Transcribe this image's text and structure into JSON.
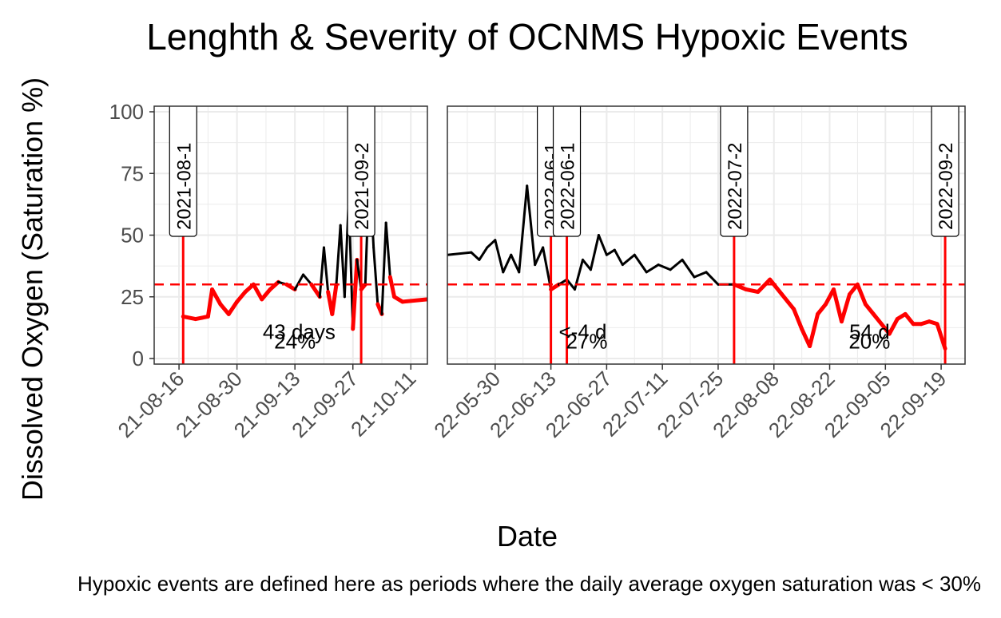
{
  "chart_data": {
    "type": "line",
    "title": "Lenghth & Severity of OCNMS Hypoxic Events",
    "xlabel": "Date",
    "ylabel": "Dissolved Oxygen (Saturation %)",
    "caption": "Hypoxic events are defined here as periods where the daily average oxygen saturation was < 30%",
    "ylim": [
      0,
      100
    ],
    "yticks": [
      0,
      25,
      50,
      75,
      100
    ],
    "threshold": 30,
    "colors": {
      "normal": "#000000",
      "hypoxic": "#ff0000",
      "grid": "#ebebeb",
      "frame": "#333333"
    },
    "panels": [
      {
        "xlim": [
          "2021-08-10",
          "2021-10-15"
        ],
        "xticks": [
          "21-08-16",
          "21-08-30",
          "21-09-13",
          "21-09-27",
          "21-10-11"
        ],
        "xtick_dates": [
          "2021-08-16",
          "2021-08-30",
          "2021-09-13",
          "2021-09-27",
          "2021-10-11"
        ],
        "event_lines": [
          {
            "date": "2021-08-17",
            "label": "2021-08-1"
          },
          {
            "date": "2021-09-29",
            "label": "2021-09-2"
          }
        ],
        "annotations": [
          {
            "x": "2021-09-14",
            "y": 8,
            "text": "43 days"
          },
          {
            "x": "2021-09-13",
            "y": 4,
            "text": "24%"
          }
        ],
        "series": [
          {
            "x": [
              "2021-08-17",
              "2021-08-20",
              "2021-08-23",
              "2021-08-24",
              "2021-08-26",
              "2021-08-28",
              "2021-08-30",
              "2021-09-01",
              "2021-09-03",
              "2021-09-05",
              "2021-09-07",
              "2021-09-09",
              "2021-09-11",
              "2021-09-13",
              "2021-09-15",
              "2021-09-17",
              "2021-09-19",
              "2021-09-20",
              "2021-09-21",
              "2021-09-22",
              "2021-09-23",
              "2021-09-24",
              "2021-09-25",
              "2021-09-26",
              "2021-09-27",
              "2021-09-28",
              "2021-09-29",
              "2021-09-30",
              "2021-10-01",
              "2021-10-02",
              "2021-10-03",
              "2021-10-04",
              "2021-10-05",
              "2021-10-06",
              "2021-10-07",
              "2021-10-09",
              "2021-10-15"
            ],
            "y": [
              17,
              16,
              17,
              28,
              22,
              18,
              23,
              27,
              30,
              24,
              28,
              31,
              30,
              28,
              34,
              30,
              25,
              45,
              27,
              18,
              30,
              54,
              25,
              65,
              12,
              40,
              28,
              30,
              78,
              45,
              22,
              18,
              55,
              33,
              25,
              23,
              24
            ]
          }
        ]
      },
      {
        "xlim": [
          "2022-05-18",
          "2022-09-25"
        ],
        "xticks": [
          "22-05-30",
          "22-06-13",
          "22-06-27",
          "22-07-11",
          "22-07-25",
          "22-08-08",
          "22-08-22",
          "22-09-05",
          "22-09-19"
        ],
        "xtick_dates": [
          "2022-05-30",
          "2022-06-13",
          "2022-06-27",
          "2022-07-11",
          "2022-07-25",
          "2022-08-08",
          "2022-08-22",
          "2022-09-05",
          "2022-09-19"
        ],
        "event_lines": [
          {
            "date": "2022-06-13",
            "label": "2022-06-1"
          },
          {
            "date": "2022-06-17",
            "label": "2022-06-1"
          },
          {
            "date": "2022-07-29",
            "label": "2022-07-2"
          },
          {
            "date": "2022-09-20",
            "label": "2022-09-2"
          }
        ],
        "annotations": [
          {
            "x": "2022-06-21",
            "y": 8,
            "text": "<-4 d"
          },
          {
            "x": "2022-06-22",
            "y": 4,
            "text": "27%"
          },
          {
            "x": "2022-09-01",
            "y": 8,
            "text": "54 d"
          },
          {
            "x": "2022-09-01",
            "y": 4,
            "text": "20%"
          }
        ],
        "series": [
          {
            "x": [
              "2022-05-18",
              "2022-05-24",
              "2022-05-26",
              "2022-05-28",
              "2022-05-30",
              "2022-06-01",
              "2022-06-03",
              "2022-06-05",
              "2022-06-07",
              "2022-06-09",
              "2022-06-11",
              "2022-06-13",
              "2022-06-15",
              "2022-06-17",
              "2022-06-19",
              "2022-06-21",
              "2022-06-23",
              "2022-06-25",
              "2022-06-27",
              "2022-06-29",
              "2022-07-01",
              "2022-07-04",
              "2022-07-07",
              "2022-07-10",
              "2022-07-13",
              "2022-07-16",
              "2022-07-19",
              "2022-07-22",
              "2022-07-25",
              "2022-07-29",
              "2022-08-01",
              "2022-08-04",
              "2022-08-07",
              "2022-08-10",
              "2022-08-13",
              "2022-08-15",
              "2022-08-17",
              "2022-08-19",
              "2022-08-21",
              "2022-08-23",
              "2022-08-25",
              "2022-08-27",
              "2022-08-29",
              "2022-08-31",
              "2022-09-02",
              "2022-09-04",
              "2022-09-06",
              "2022-09-08",
              "2022-09-10",
              "2022-09-12",
              "2022-09-14",
              "2022-09-16",
              "2022-09-18",
              "2022-09-20"
            ],
            "y": [
              42,
              43,
              40,
              45,
              48,
              35,
              42,
              35,
              70,
              38,
              45,
              28,
              30,
              32,
              28,
              40,
              36,
              50,
              42,
              44,
              38,
              42,
              35,
              38,
              36,
              40,
              33,
              35,
              30,
              30,
              28,
              27,
              32,
              26,
              20,
              12,
              5,
              18,
              22,
              28,
              15,
              26,
              30,
              22,
              18,
              14,
              10,
              16,
              18,
              14,
              14,
              15,
              14,
              4
            ]
          }
        ]
      }
    ]
  }
}
